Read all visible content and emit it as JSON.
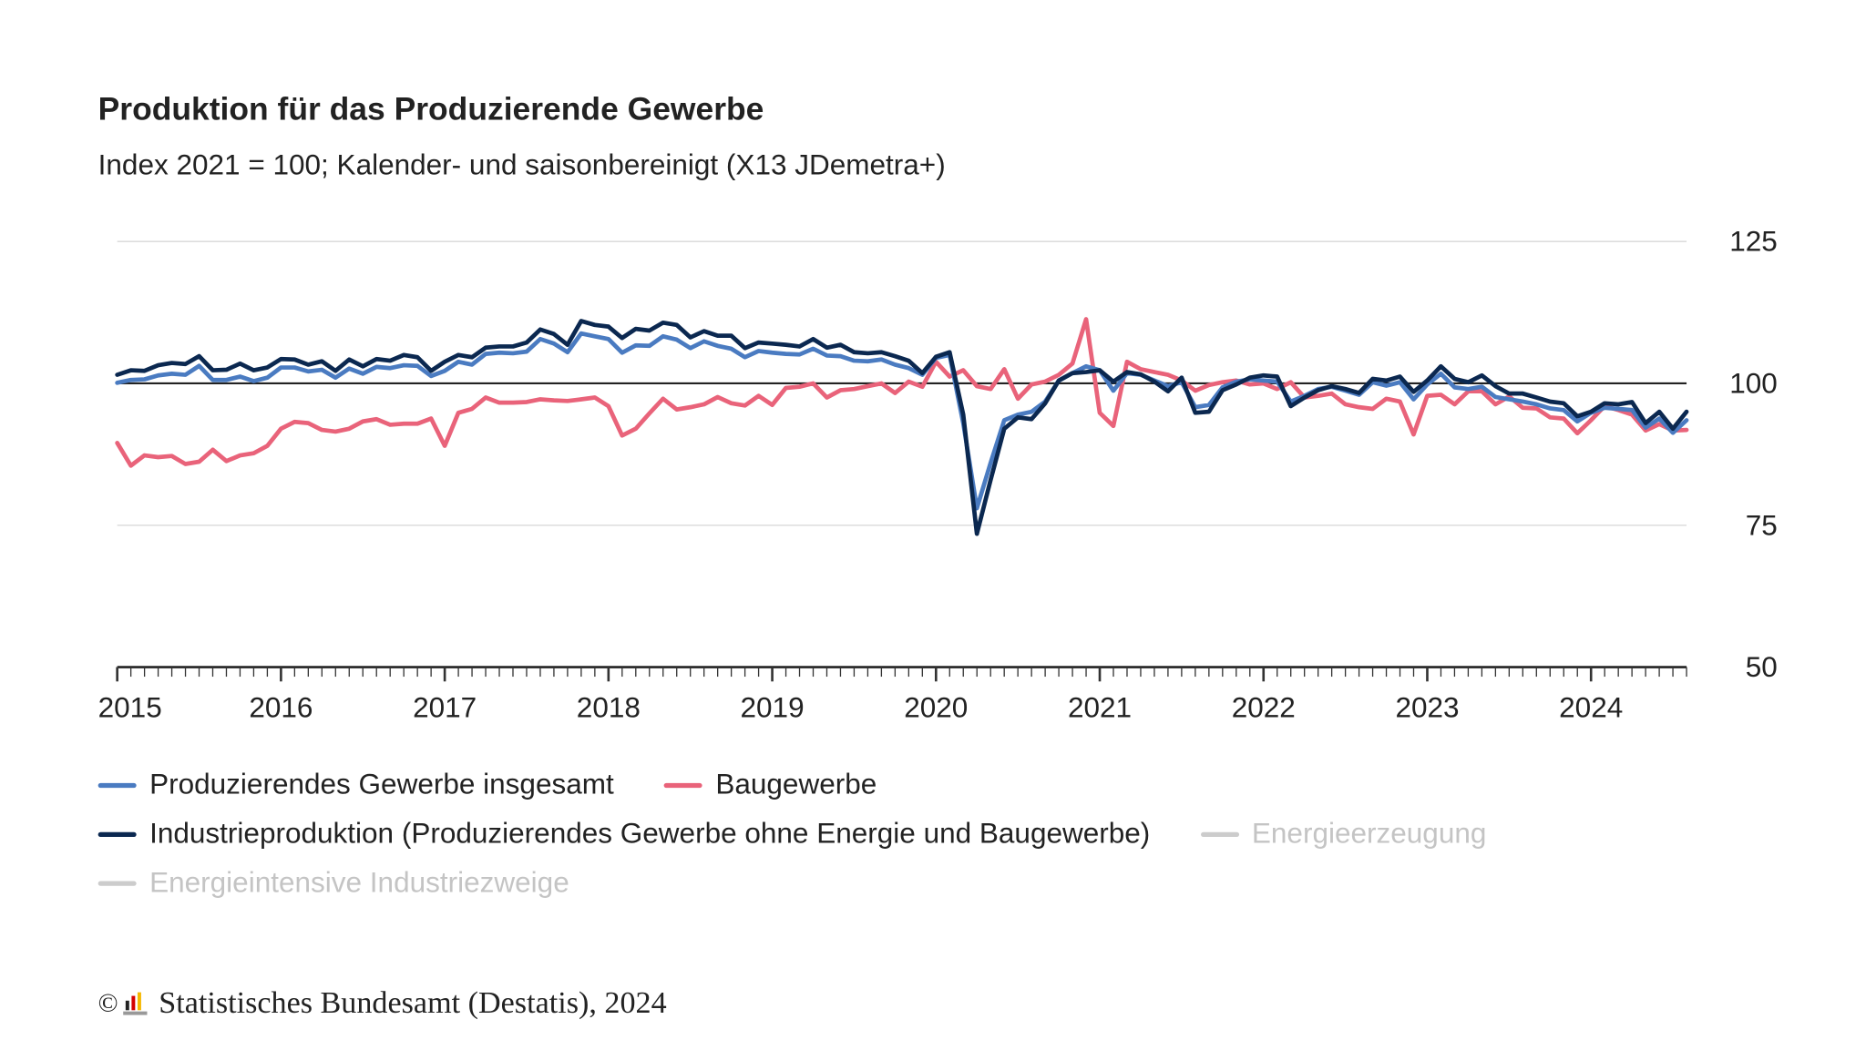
{
  "title": "Produktion für das Produzierende Gewerbe",
  "subtitle": "Index 2021 = 100; Kalender- und saisonbereinigt (X13 JDemetra+)",
  "footer": {
    "copyright_symbol": "©",
    "source": "Statistisches Bundesamt (Destatis), 2024"
  },
  "chart_data": {
    "type": "line",
    "x_start": "2015-01",
    "x_end": "2024-08",
    "frequency": "monthly",
    "x_tick_labels": [
      "2015",
      "2016",
      "2017",
      "2018",
      "2019",
      "2020",
      "2021",
      "2022",
      "2023",
      "2024"
    ],
    "y_tick_labels": [
      "50",
      "75",
      "100",
      "125"
    ],
    "ylim": [
      50,
      125
    ],
    "reference_line": 100,
    "grid": true,
    "y_axis_position": "right",
    "legend_placement": "bottom",
    "series": [
      {
        "name": "Produzierendes Gewerbe insgesamt",
        "color": "#4a7bc1",
        "visible": true,
        "values": [
          100.1,
          100.6,
          100.7,
          101.4,
          101.7,
          101.5,
          103.1,
          100.6,
          100.6,
          101.2,
          100.4,
          101.0,
          102.8,
          102.8,
          102.1,
          102.4,
          101.0,
          102.6,
          101.7,
          102.9,
          102.7,
          103.2,
          103.1,
          101.3,
          102.2,
          103.8,
          103.3,
          105.2,
          105.4,
          105.3,
          105.6,
          107.8,
          107.0,
          105.5,
          108.8,
          108.3,
          107.8,
          105.4,
          106.7,
          106.6,
          108.3,
          107.7,
          106.2,
          107.4,
          106.6,
          106.1,
          104.6,
          105.7,
          105.4,
          105.2,
          105.1,
          106.1,
          104.9,
          104.8,
          104.0,
          103.9,
          104.2,
          103.3,
          102.7,
          101.5,
          104.5,
          105.0,
          93.0,
          78.0,
          86.0,
          93.5,
          94.5,
          95.0,
          96.8,
          100.5,
          101.8,
          103.0,
          102.3,
          98.7,
          101.8,
          101.5,
          100.5,
          99.5,
          100.2,
          95.8,
          96.2,
          99.3,
          100.3,
          100.7,
          100.5,
          100.3,
          96.8,
          97.8,
          99.0,
          99.4,
          98.7,
          98.0,
          100.2,
          99.6,
          100.2,
          97.2,
          99.8,
          101.7,
          99.3,
          99.0,
          99.4,
          97.6,
          97.2,
          96.8,
          96.3,
          95.6,
          95.3,
          93.3,
          94.8,
          95.7,
          95.5,
          95.3,
          92.2,
          93.8,
          91.3,
          93.5
        ]
      },
      {
        "name": "Baugewerbe",
        "color": "#e9637a",
        "visible": true,
        "values": [
          89.5,
          85.5,
          87.3,
          87.0,
          87.2,
          85.8,
          86.2,
          88.3,
          86.3,
          87.3,
          87.7,
          89.0,
          92.0,
          93.2,
          93.0,
          91.8,
          91.5,
          92.0,
          93.3,
          93.7,
          92.7,
          92.9,
          92.9,
          93.8,
          89.0,
          94.8,
          95.5,
          97.5,
          96.6,
          96.6,
          96.7,
          97.2,
          97.0,
          96.9,
          97.2,
          97.5,
          96.0,
          90.8,
          92.0,
          94.7,
          97.3,
          95.4,
          95.8,
          96.3,
          97.6,
          96.5,
          96.1,
          97.8,
          96.2,
          99.2,
          99.4,
          100.0,
          97.5,
          98.8,
          99.0,
          99.5,
          100.0,
          98.3,
          100.3,
          99.4,
          103.8,
          101.2,
          102.3,
          99.5,
          99.0,
          102.5,
          97.3,
          99.8,
          100.3,
          101.5,
          103.5,
          111.3,
          94.8,
          92.5,
          103.8,
          102.5,
          102.0,
          101.5,
          100.5,
          98.7,
          99.7,
          100.2,
          100.5,
          99.8,
          100.0,
          99.0,
          100.2,
          97.5,
          97.8,
          98.2,
          96.3,
          95.8,
          95.5,
          97.3,
          96.8,
          91.0,
          97.8,
          98.0,
          96.3,
          98.6,
          98.6,
          96.3,
          97.7,
          95.7,
          95.6,
          94.0,
          93.8,
          91.2,
          93.5,
          96.0,
          95.3,
          94.5,
          91.7,
          92.8,
          91.7,
          91.8
        ]
      },
      {
        "name": "Industrieproduktion (Produzierendes Gewerbe ohne Energie und Baugewerbe)",
        "color": "#0b2850",
        "visible": true,
        "values": [
          101.5,
          102.3,
          102.2,
          103.2,
          103.6,
          103.4,
          104.8,
          102.3,
          102.4,
          103.5,
          102.3,
          102.8,
          104.3,
          104.2,
          103.3,
          103.9,
          102.2,
          104.2,
          103.0,
          104.3,
          104.0,
          105.0,
          104.6,
          102.2,
          103.8,
          105.0,
          104.6,
          106.3,
          106.5,
          106.5,
          107.2,
          109.5,
          108.7,
          106.8,
          111.0,
          110.3,
          110.0,
          108.0,
          109.6,
          109.3,
          110.7,
          110.3,
          108.1,
          109.2,
          108.4,
          108.4,
          106.2,
          107.2,
          107.0,
          106.8,
          106.5,
          107.8,
          106.3,
          106.8,
          105.5,
          105.3,
          105.5,
          104.8,
          104.0,
          101.8,
          104.7,
          105.5,
          94.5,
          73.5,
          83.0,
          92.0,
          94.0,
          93.7,
          96.5,
          100.5,
          101.8,
          102.0,
          102.3,
          100.3,
          102.0,
          101.6,
          100.3,
          98.6,
          101.0,
          94.8,
          95.0,
          98.8,
          99.8,
          101.0,
          101.4,
          101.2,
          96.0,
          97.5,
          98.8,
          99.5,
          99.0,
          98.3,
          100.8,
          100.5,
          101.2,
          98.5,
          100.5,
          103.0,
          100.8,
          100.2,
          101.4,
          99.5,
          98.2,
          98.2,
          97.5,
          96.8,
          96.5,
          94.2,
          95.0,
          96.5,
          96.3,
          96.7,
          93.0,
          95.0,
          92.0,
          95.0
        ]
      },
      {
        "name": "Energieerzeugung",
        "color": "#cccccc",
        "visible": false,
        "values": []
      },
      {
        "name": "Energieintensive Industriezweige",
        "color": "#cccccc",
        "visible": false,
        "values": []
      }
    ]
  },
  "legend": {
    "rows": [
      [
        0,
        1
      ],
      [
        2,
        3
      ],
      [
        4
      ]
    ]
  }
}
